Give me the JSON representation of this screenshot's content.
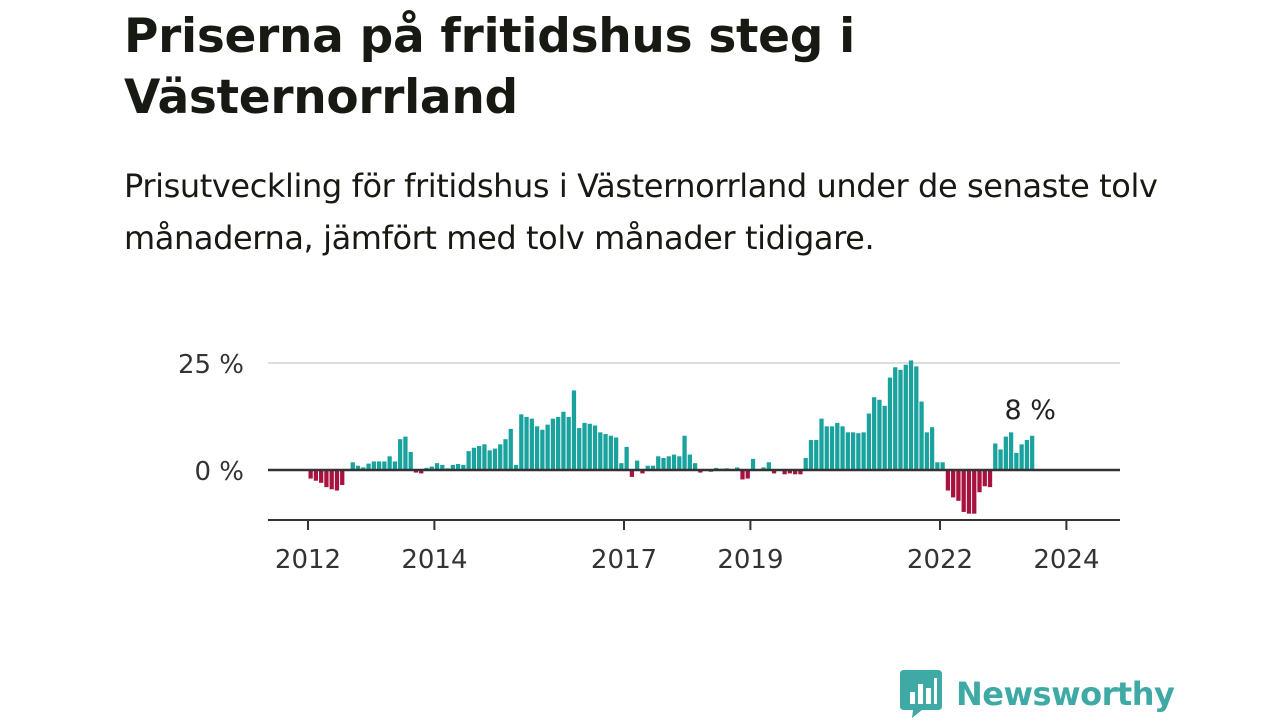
{
  "header": {
    "title": "Priserna på fritidshus steg i Västernorrland",
    "subtitle": "Prisutveckling för fritidshus i Västernorrland under de senaste tolv månaderna, jämfört med tolv månader tidigare."
  },
  "brand": {
    "name": "Newsworthy",
    "color": "#3fa9a6"
  },
  "chart_data": {
    "type": "bar",
    "value_unit": "%",
    "y_ticks": [
      {
        "value": 0,
        "label": "0 %"
      },
      {
        "value": 25,
        "label": "25 %"
      }
    ],
    "ylim": [
      -10.5,
      25
    ],
    "x_ticks": [
      {
        "value": 2012,
        "label": "2012"
      },
      {
        "value": 2014,
        "label": "2014"
      },
      {
        "value": 2017,
        "label": "2017"
      },
      {
        "value": 2019,
        "label": "2019"
      },
      {
        "value": 2022,
        "label": "2022"
      },
      {
        "value": 2024,
        "label": "2024"
      }
    ],
    "start": "2012-01",
    "end": "2024-05",
    "colors": {
      "positive": "#1aa39e",
      "negative": "#a8123f",
      "grid": "#dddddd",
      "zero_line": "#333333",
      "axis": "#333333"
    },
    "annotation": {
      "label": "8 %",
      "target": "last"
    },
    "values": [
      -2,
      -2.5,
      -3,
      -4,
      -4.5,
      -4.8,
      -3.5,
      0,
      1.8,
      1,
      0.6,
      1.5,
      2,
      2,
      2,
      3.2,
      2,
      7.2,
      7.8,
      4.2,
      -0.6,
      -0.8,
      0.5,
      0.8,
      1.6,
      1.2,
      0.4,
      1.2,
      1.4,
      1.2,
      4.4,
      5.2,
      5.6,
      6,
      4.6,
      5,
      6,
      7.2,
      9.6,
      1.2,
      13,
      12.4,
      12,
      10.2,
      9.4,
      10.6,
      12,
      12.4,
      13.6,
      12.4,
      18.6,
      9.8,
      11,
      10.8,
      10.4,
      8.8,
      8.4,
      8,
      7.6,
      1.6,
      5.4,
      -1.6,
      2.2,
      -0.8,
      1,
      1,
      3.2,
      2.8,
      3.2,
      3.6,
      3.2,
      8,
      3.6,
      1.6,
      -0.6,
      0.2,
      -0.4,
      0.5,
      0.3,
      0.4,
      0.2,
      0.6,
      -2.2,
      -2,
      2.6,
      0,
      0.6,
      1.8,
      -0.8,
      0.2,
      -1,
      -0.8,
      -1,
      -1,
      2.8,
      7,
      7,
      12,
      10.2,
      10.2,
      11,
      10.2,
      8.8,
      8.8,
      8.6,
      8.8,
      13.2,
      17,
      16.4,
      15,
      21.6,
      24,
      23.4,
      24.6,
      25.6,
      24.2,
      16,
      8.8,
      10,
      1.8,
      1.8,
      -4.8,
      -6.4,
      -7.2,
      -9.8,
      -10.2,
      -10.2,
      -5.2,
      -3.8,
      -4,
      6.2,
      4.8,
      7.8,
      8.8,
      4,
      6,
      7,
      8
    ]
  }
}
